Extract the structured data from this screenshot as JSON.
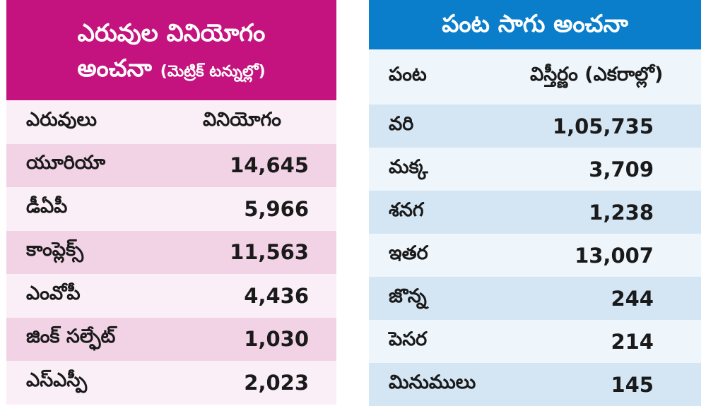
{
  "colors": {
    "left_header_bg": "#c4137f",
    "right_header_bg": "#0a7ecb",
    "left_row_light": "#fbeff7",
    "left_row_dark": "#f2d3e6",
    "right_row_light": "#eef5fb",
    "right_row_dark": "#d4e6f4"
  },
  "fertilizer_table": {
    "title_line1": "ఎరువుల వినియోగం",
    "title_line2": "అంచనా",
    "title_unit": "(మెట్రిక్ టన్నుల్లో)",
    "col_header_1": "ఎరువులు",
    "col_header_2": "వినియోగం",
    "rows": [
      {
        "name": "యూరియా",
        "value": "14,645"
      },
      {
        "name": "డీఏపీ",
        "value": "5,966"
      },
      {
        "name": "కాంప్లెక్స్",
        "value": "11,563"
      },
      {
        "name": "ఎంవోపీ",
        "value": "4,436"
      },
      {
        "name": "జింక్ సల్ఫేట్",
        "value": "1,030"
      },
      {
        "name": "ఎస్ఎస్పీ",
        "value": "2,023"
      }
    ]
  },
  "crop_table": {
    "title": "పంట సాగు అంచనా",
    "col_header_1": "పంట",
    "col_header_2": "విస్తీర్ణం (ఎకరాల్లో)",
    "rows": [
      {
        "name": "వరి",
        "value": "1,05,735"
      },
      {
        "name": "మక్క",
        "value": "3,709"
      },
      {
        "name": "శనగ",
        "value": "1,238"
      },
      {
        "name": "ఇతర",
        "value": "13,007"
      },
      {
        "name": "జొన్న",
        "value": "244"
      },
      {
        "name": "పెసర",
        "value": "214"
      },
      {
        "name": "మినుములు",
        "value": "145"
      }
    ]
  }
}
